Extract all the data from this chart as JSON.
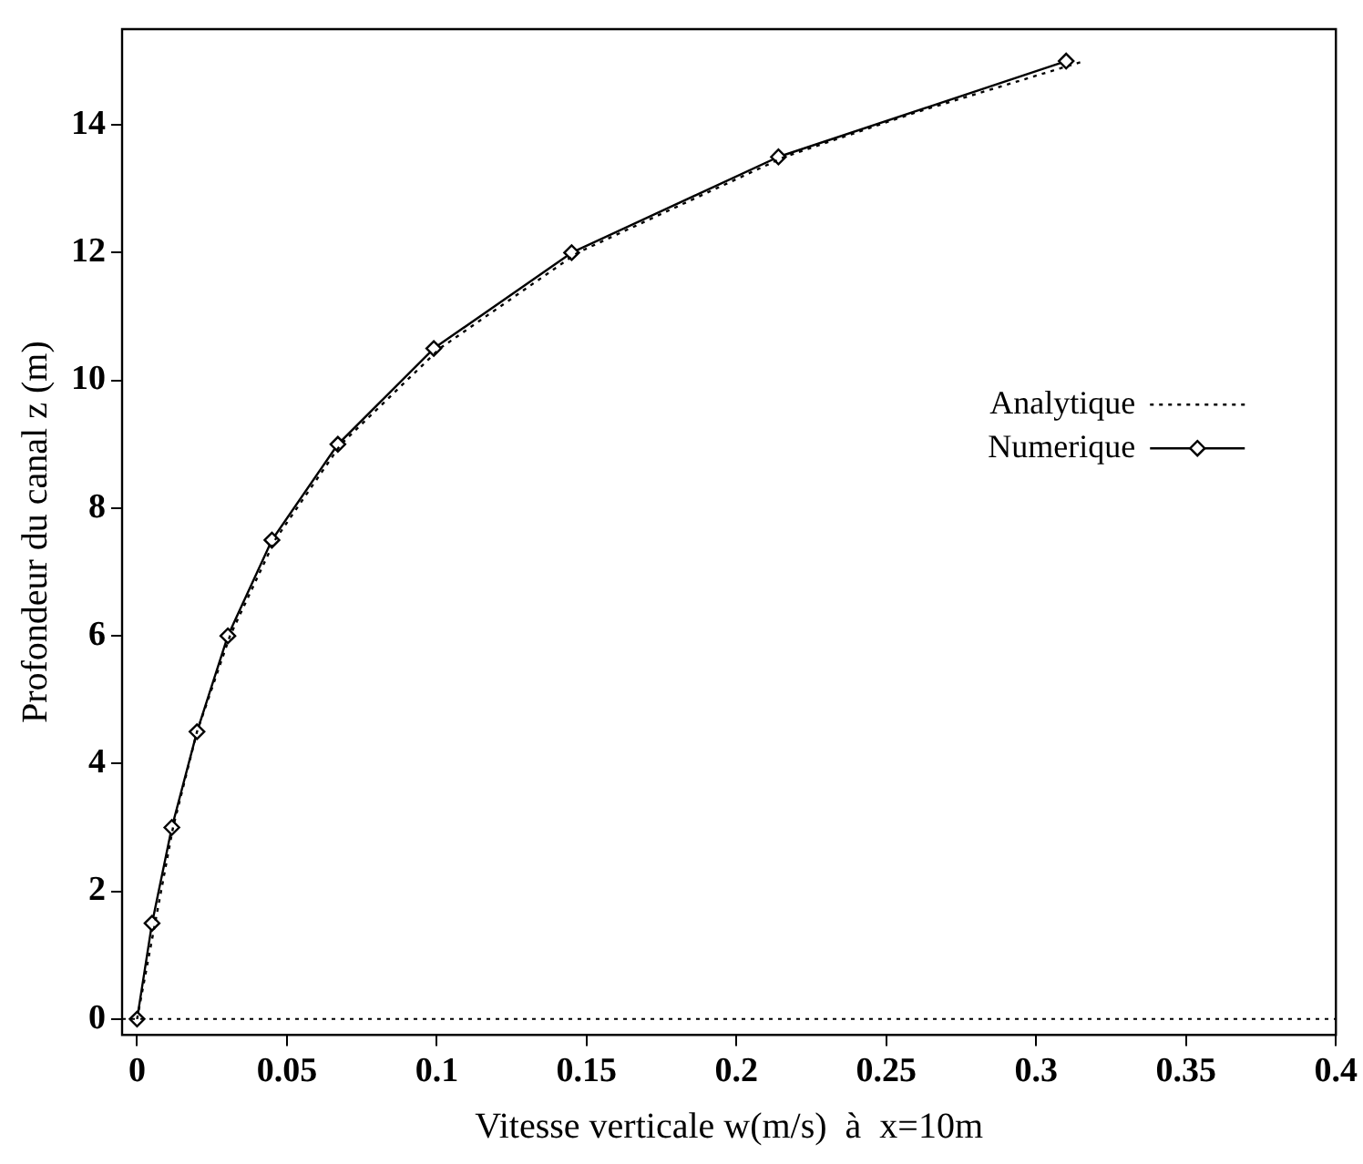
{
  "chart_data": {
    "type": "line",
    "xlabel": "Vitesse verticale w(m/s)  à  x=10m",
    "ylabel": "Profondeur du canal z (m)",
    "xlim": [
      -0.005,
      0.4
    ],
    "xticks": [
      0,
      0.05,
      0.1,
      0.15,
      0.2,
      0.25,
      0.3,
      0.35,
      0.4
    ],
    "ylim": [
      -0.25,
      15.5
    ],
    "yticks": [
      0,
      2,
      4,
      6,
      8,
      10,
      12,
      14
    ],
    "grid": false,
    "legend": "right",
    "ref_lines": [
      {
        "axis": "y",
        "value": 0,
        "line_style": "dotted",
        "color": "#000000"
      }
    ],
    "series": [
      {
        "name": "Analytique",
        "color": "#000000",
        "line_style": "dotted",
        "marker": "none",
        "x": [
          0,
          0.006,
          0.012,
          0.02,
          0.031,
          0.046,
          0.068,
          0.101,
          0.147,
          0.216,
          0.26,
          0.316
        ],
        "values": [
          0,
          1.5,
          3,
          4.5,
          6,
          7.5,
          9,
          10.5,
          12,
          13.5,
          14.2,
          15
        ]
      },
      {
        "name": "Numerique",
        "color": "#000000",
        "line_style": "solid",
        "marker": "diamond",
        "x": [
          0,
          0.005,
          0.0116,
          0.02,
          0.0303,
          0.045,
          0.067,
          0.099,
          0.145,
          0.214,
          0.31
        ],
        "values": [
          0,
          1.5,
          3,
          4.5,
          6,
          7.5,
          9,
          10.5,
          12,
          13.5,
          15
        ]
      }
    ]
  }
}
